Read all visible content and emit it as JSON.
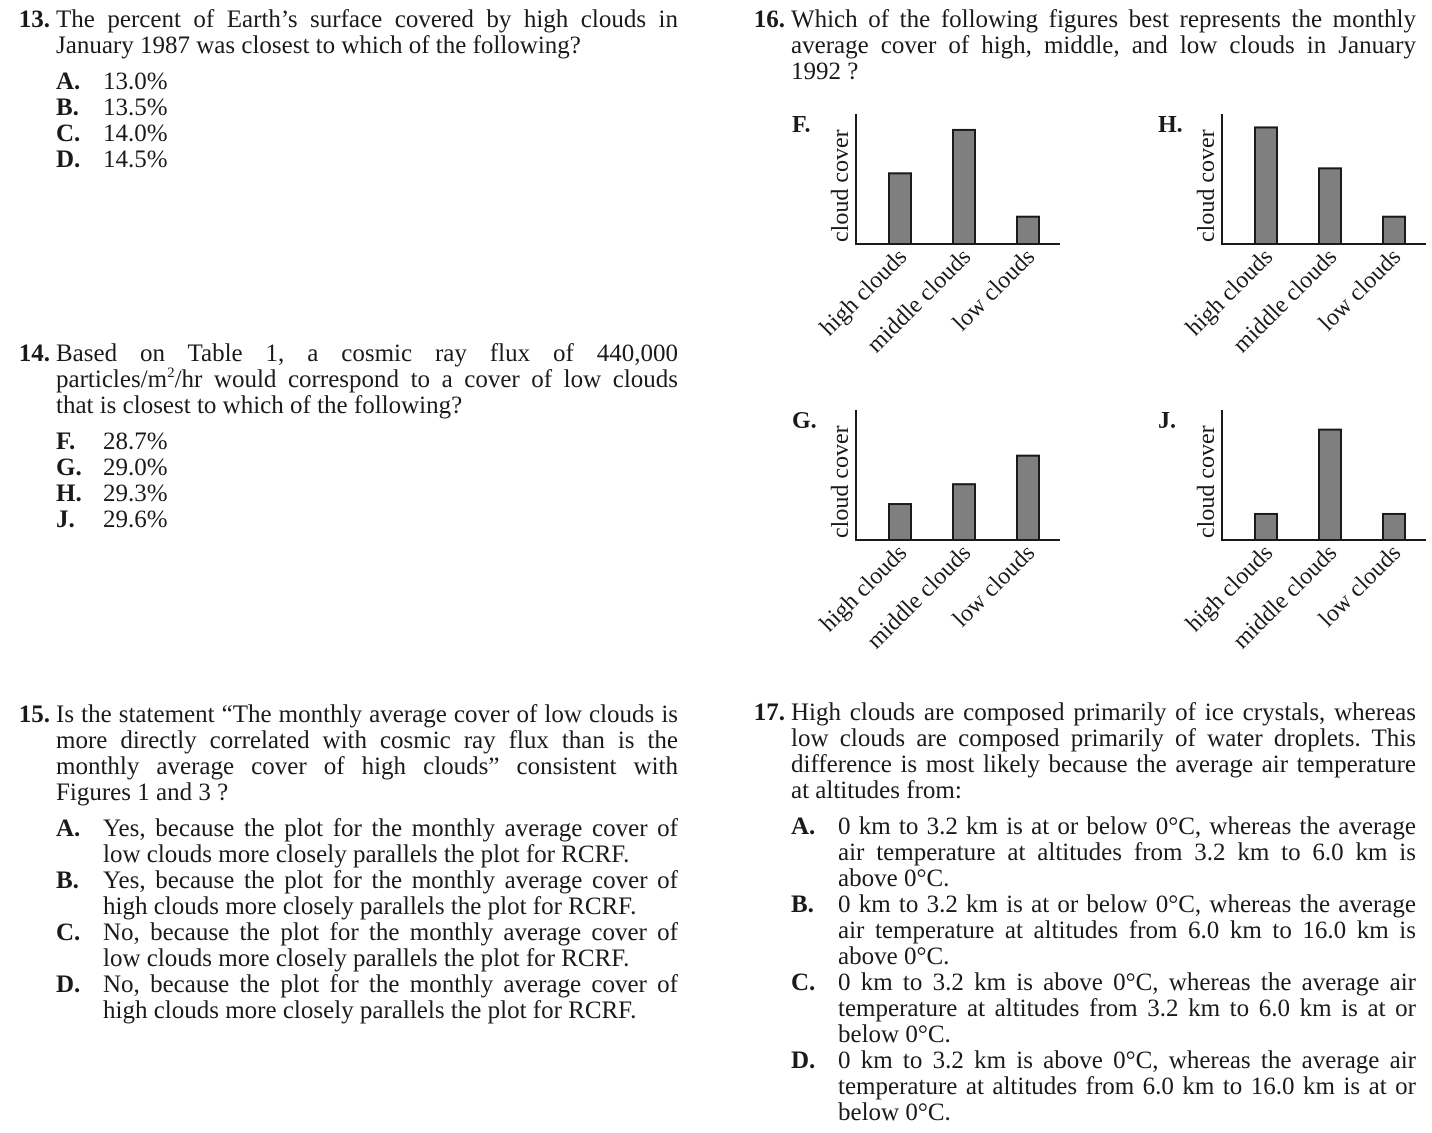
{
  "q13": {
    "number": "13.",
    "stem": "The percent of Earth’s surface covered by high clouds in January 1987 was closest to which of the following?",
    "options": [
      {
        "label": "A.",
        "text": "13.0%"
      },
      {
        "label": "B.",
        "text": "13.5%"
      },
      {
        "label": "C.",
        "text": "14.0%"
      },
      {
        "label": "D.",
        "text": "14.5%"
      }
    ]
  },
  "q14": {
    "number": "14.",
    "stem_a": "Based on Table 1, a cosmic ray flux of 440,000 particles/m",
    "stem_sup": "2",
    "stem_b": "/hr would correspond to a cover of low clouds that is closest to which of the following?",
    "options": [
      {
        "label": "F.",
        "text": "28.7%"
      },
      {
        "label": "G.",
        "text": "29.0%"
      },
      {
        "label": "H.",
        "text": "29.3%"
      },
      {
        "label": "J.",
        "text": "29.6%"
      }
    ]
  },
  "q15": {
    "number": "15.",
    "stem": "Is the statement “The monthly average cover of low clouds is more directly correlated with cosmic ray flux than is the monthly average cover of high clouds” consistent with Figures 1 and 3 ?",
    "options": [
      {
        "label": "A.",
        "text": "Yes, because the plot for the monthly average cover of low clouds more closely parallels the plot for RCRF."
      },
      {
        "label": "B.",
        "text": "Yes, because the plot for the monthly average cover of high clouds more closely parallels the plot for RCRF."
      },
      {
        "label": "C.",
        "text": "No, because the plot for the monthly average cover of low clouds more closely parallels the plot for RCRF."
      },
      {
        "label": "D.",
        "text": "No, because the plot for the monthly average cover of high clouds more closely parallels the plot for RCRF."
      }
    ]
  },
  "q16": {
    "number": "16.",
    "stem": "Which of the following figures best represents the monthly average cover of high, middle, and low clouds in January 1992 ?"
  },
  "q17": {
    "number": "17.",
    "stem": "High clouds are composed primarily of ice crystals, whereas low clouds are composed primarily of water droplets. This difference is most likely because the average air temperature at altitudes from:",
    "options": [
      {
        "label": "A.",
        "text": "0 km to 3.2 km is at or below 0°C, whereas the average air temperature at altitudes from 3.2 km to 6.0 km is above 0°C."
      },
      {
        "label": "B.",
        "text": "0 km to 3.2 km is at or below 0°C, whereas the average air temperature at altitudes from 6.0 km to 16.0 km is above 0°C."
      },
      {
        "label": "C.",
        "text": "0 km to 3.2 km is above 0°C, whereas the average air temperature at altitudes from 3.2 km to 6.0 km is at or below 0°C."
      },
      {
        "label": "D.",
        "text": "0 km to 3.2 km is above 0°C, whereas the average air temperature at altitudes from 6.0 km to 16.0 km is at or below 0°C."
      }
    ]
  },
  "chart_data": [
    {
      "type": "bar",
      "panel": "F.",
      "ylabel": "cloud cover",
      "categories": [
        "high clouds",
        "middle clouds",
        "low clouds"
      ],
      "values": [
        0.57,
        0.92,
        0.22
      ],
      "ylim": [
        0,
        1
      ],
      "value_scale": "relative (no numeric axis)"
    },
    {
      "type": "bar",
      "panel": "H.",
      "ylabel": "cloud cover",
      "categories": [
        "high clouds",
        "middle clouds",
        "low clouds"
      ],
      "values": [
        0.94,
        0.61,
        0.22
      ],
      "ylim": [
        0,
        1
      ],
      "value_scale": "relative (no numeric axis)"
    },
    {
      "type": "bar",
      "panel": "G.",
      "ylabel": "cloud cover",
      "categories": [
        "high clouds",
        "middle clouds",
        "low clouds"
      ],
      "values": [
        0.29,
        0.45,
        0.68
      ],
      "ylim": [
        0,
        1
      ],
      "value_scale": "relative (no numeric axis)"
    },
    {
      "type": "bar",
      "panel": "J.",
      "ylabel": "cloud cover",
      "categories": [
        "high clouds",
        "middle clouds",
        "low clouds"
      ],
      "values": [
        0.21,
        0.89,
        0.21
      ],
      "ylim": [
        0,
        1
      ],
      "value_scale": "relative (no numeric axis)"
    }
  ]
}
